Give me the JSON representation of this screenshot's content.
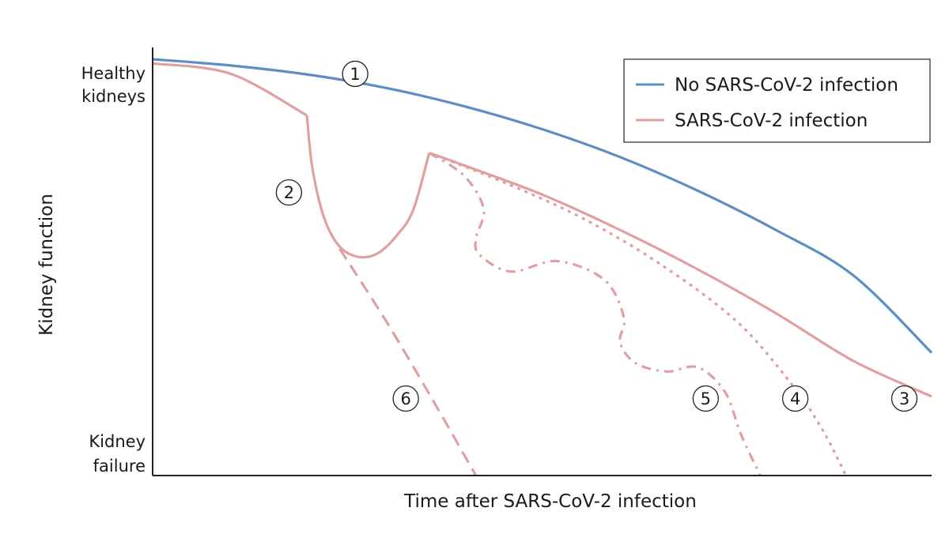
{
  "chart_data": {
    "type": "line",
    "title": "",
    "xlabel": "Time after SARS-CoV-2 infection",
    "ylabel": "Kidney function",
    "y_tick_labels": {
      "top": [
        "Healthy",
        "kidneys"
      ],
      "bottom": [
        "Kidney",
        "failure"
      ]
    },
    "legend": {
      "placement": "top-right",
      "entries": [
        {
          "name": "No SARS-CoV-2 infection",
          "color": "#5b8fc4"
        },
        {
          "name": "SARS-CoV-2 infection",
          "color": "#e0a0a2"
        }
      ]
    },
    "colors": {
      "no_infection": "#5b8fc4",
      "infection": "#e0a0a2",
      "axis": "#222222"
    },
    "xlim": [
      0,
      100
    ],
    "ylim": [
      0,
      100
    ],
    "series": [
      {
        "name": "No SARS-CoV-2 infection",
        "key": "no_infection",
        "style": "solid",
        "x": [
          0,
          10,
          20,
          30,
          40,
          50,
          60,
          70,
          80,
          90,
          100
        ],
        "y": [
          100,
          98.5,
          96.3,
          93.1,
          88.7,
          83.2,
          76.5,
          68.4,
          59,
          48,
          29.5
        ]
      },
      {
        "name": "SARS-CoV-2 infection",
        "key": "trajectory-1-2-3",
        "style": "solid",
        "x": [
          0,
          10,
          19.8,
          19.8,
          20.5,
          22,
          24,
          26.5,
          29,
          31.5,
          33.5,
          35.5,
          35.5,
          40,
          50,
          60,
          70,
          80,
          90,
          100
        ],
        "y": [
          99,
          96.5,
          86.5,
          86.5,
          74,
          62,
          55,
          52.5,
          53.5,
          58,
          64,
          77.5,
          77.5,
          74.5,
          67.5,
          59,
          49.5,
          39,
          27.5,
          19
        ]
      },
      {
        "key": "trajectory-4",
        "style": "dotted",
        "x": [
          35.5,
          45,
          55,
          65,
          75,
          82,
          86,
          89
        ],
        "y": [
          77.5,
          70.5,
          62,
          51,
          37,
          22,
          11,
          0
        ]
      },
      {
        "key": "trajectory-5",
        "style": "dash-dot",
        "x": [
          35.5,
          40,
          42.5,
          41.5,
          42,
          46,
          52,
          58,
          60.5,
          60,
          62,
          66,
          70,
          73.5,
          75.5,
          78
        ],
        "y": [
          77.5,
          72,
          64,
          57,
          53,
          49,
          51.5,
          47,
          38,
          32,
          27,
          25,
          26,
          20,
          10,
          0
        ]
      },
      {
        "key": "trajectory-6",
        "style": "dashed",
        "x": [
          24,
          30,
          36,
          41.5
        ],
        "y": [
          54.5,
          37,
          18,
          0
        ]
      }
    ],
    "annotations": [
      {
        "label": "1",
        "x": 26,
        "y": 96.5
      },
      {
        "label": "2",
        "x": 17.5,
        "y": 68
      },
      {
        "label": "3",
        "x": 96.5,
        "y": 18.5
      },
      {
        "label": "4",
        "x": 82.5,
        "y": 18.5
      },
      {
        "label": "5",
        "x": 71,
        "y": 18.5
      },
      {
        "label": "6",
        "x": 32.5,
        "y": 18.5
      }
    ]
  }
}
